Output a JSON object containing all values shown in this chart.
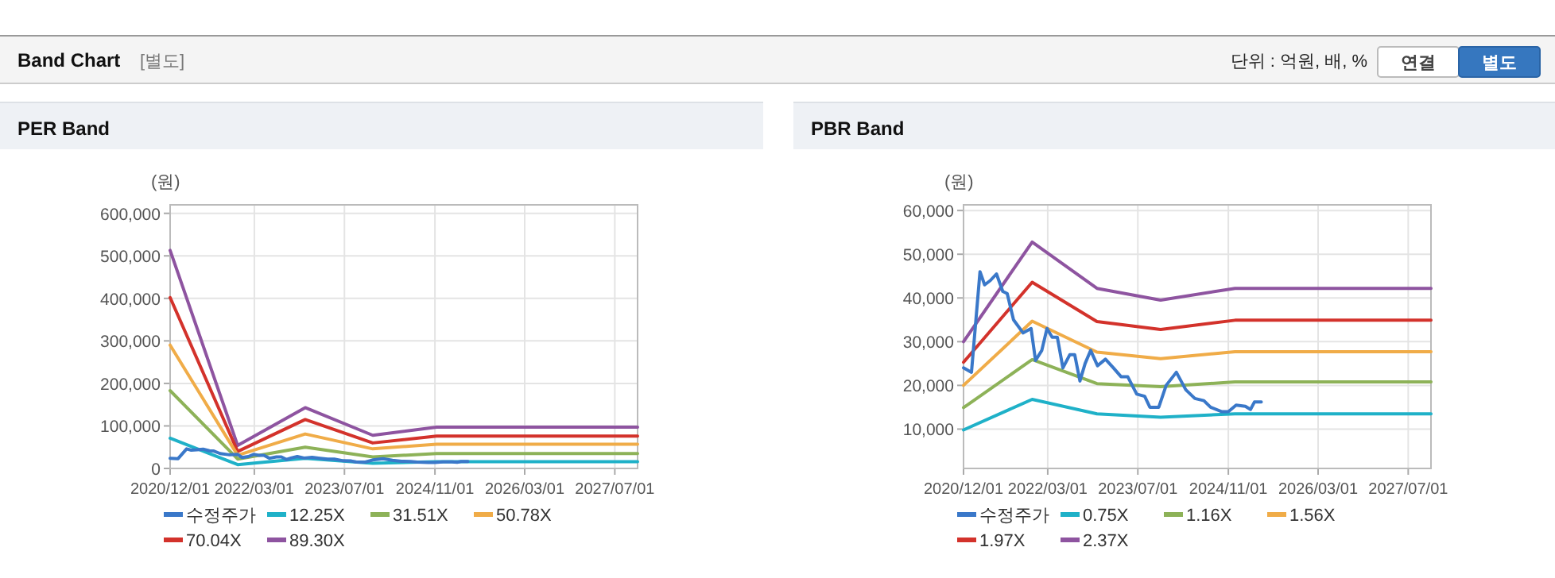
{
  "chart_data": [
    {
      "type": "other",
      "title": "Band Chart",
      "annotations": [
        "[별도]",
        "단위 : 억원, 배, %",
        "연결",
        "별도"
      ]
    },
    {
      "type": "line",
      "title": "PER Band",
      "ylabel": "(원)",
      "grid": true,
      "legend": "bottom",
      "xlim": [
        "2020-12-01",
        "2027-11-01"
      ],
      "xticks": [
        {
          "value": "2020-12-01",
          "label": "2020/12/01"
        },
        {
          "value": "2022-03-01",
          "label": "2022/03/01"
        },
        {
          "value": "2023-07-01",
          "label": "2023/07/01"
        },
        {
          "value": "2024-11-01",
          "label": "2024/11/01"
        },
        {
          "value": "2026-03-01",
          "label": "2026/03/01"
        },
        {
          "value": "2027-07-01",
          "label": "2027/07/01"
        }
      ],
      "ylim": [
        0,
        620000
      ],
      "yticks": [
        0,
        {
          "value": 100000,
          "label": "100,000"
        },
        {
          "value": 200000,
          "label": "200,000"
        },
        {
          "value": 300000,
          "label": "300,000"
        },
        {
          "value": 400000,
          "label": "400,000"
        },
        {
          "value": 500000,
          "label": "500,000"
        },
        {
          "value": 600000,
          "label": "600,000"
        }
      ],
      "x": [
        "2020-12-01",
        "2021-12-01",
        "2022-12-01",
        "2023-12-01",
        "2024-11-10",
        "2027-11-01"
      ],
      "series": [
        {
          "name": "수정주가",
          "color": "#3a78c9",
          "x": [
            "2020-12-01",
            "2021-01-13",
            "2021-02-28",
            "2021-03-25",
            "2021-04-25",
            "2021-05-28",
            "2021-07-01",
            "2021-07-25",
            "2021-08-28",
            "2021-10-19",
            "2021-12-01",
            "2021-12-25",
            "2022-01-28",
            "2022-02-25",
            "2022-03-25",
            "2022-04-22",
            "2022-05-22",
            "2022-06-28",
            "2022-07-25",
            "2022-08-22",
            "2022-09-19",
            "2022-10-19",
            "2022-11-25",
            "2023-01-07",
            "2023-02-19",
            "2023-04-01",
            "2023-05-07",
            "2023-06-25",
            "2023-08-07",
            "2023-09-04",
            "2023-10-22",
            "2023-12-01",
            "2024-01-25",
            "2024-03-16",
            "2024-05-04",
            "2024-06-22",
            "2024-07-28",
            "2024-09-25",
            "2024-11-01",
            "2024-12-13",
            "2025-02-01",
            "2025-03-01",
            "2025-03-22",
            "2025-04-28"
          ],
          "values": [
            24000,
            23000,
            46000,
            43000,
            44000,
            45500,
            41500,
            41000,
            35000,
            32000,
            33000,
            25700,
            28000,
            33000,
            31000,
            31000,
            24000,
            27000,
            27000,
            21000,
            25000,
            28000,
            24500,
            26000,
            24000,
            22000,
            22000,
            18000,
            17500,
            15000,
            15000,
            20000,
            23000,
            19000,
            17000,
            16500,
            15000,
            14000,
            14000,
            15500,
            15200,
            14500,
            16200,
            16200
          ]
        },
        {
          "name": "12.25X",
          "color": "#1fb1c8",
          "values": [
            71000,
            9000,
            24000,
            12000,
            16000,
            16000
          ]
        },
        {
          "name": "31.51X",
          "color": "#8db258",
          "values": [
            183000,
            22000,
            50000,
            27000,
            35000,
            35000
          ]
        },
        {
          "name": "50.78X",
          "color": "#f0ac48",
          "values": [
            290000,
            31000,
            81000,
            46000,
            57000,
            57000
          ]
        },
        {
          "name": "70.04X",
          "color": "#d3322b",
          "values": [
            402000,
            40000,
            115000,
            60000,
            76000,
            76000
          ]
        },
        {
          "name": "89.30X",
          "color": "#8e54a0",
          "values": [
            513000,
            54000,
            143000,
            78000,
            97000,
            97000
          ]
        }
      ]
    },
    {
      "type": "line",
      "title": "PBR Band",
      "ylabel": "(원)",
      "grid": true,
      "legend": "bottom",
      "xlim": [
        "2020-12-01",
        "2027-11-01"
      ],
      "xticks": [
        {
          "value": "2020-12-01",
          "label": "2020/12/01"
        },
        {
          "value": "2022-03-01",
          "label": "2022/03/01"
        },
        {
          "value": "2023-07-01",
          "label": "2023/07/01"
        },
        {
          "value": "2024-11-01",
          "label": "2024/11/01"
        },
        {
          "value": "2026-03-01",
          "label": "2026/03/01"
        },
        {
          "value": "2027-07-01",
          "label": "2027/07/01"
        }
      ],
      "ylim": [
        1000,
        61300
      ],
      "yticks": [
        {
          "value": 10000,
          "label": "10,000"
        },
        {
          "value": 20000,
          "label": "20,000"
        },
        {
          "value": 30000,
          "label": "30,000"
        },
        {
          "value": 40000,
          "label": "40,000"
        },
        {
          "value": 50000,
          "label": "50,000"
        },
        {
          "value": 60000,
          "label": "60,000"
        }
      ],
      "x": [
        "2020-12-01",
        "2021-12-07",
        "2022-11-22",
        "2023-11-01",
        "2024-12-07",
        "2027-11-01"
      ],
      "series": [
        {
          "name": "수정주가",
          "color": "#3a78c9",
          "x": [
            "2020-12-01",
            "2021-01-13",
            "2021-02-28",
            "2021-03-25",
            "2021-04-25",
            "2021-05-28",
            "2021-07-01",
            "2021-07-25",
            "2021-08-28",
            "2021-10-19",
            "2021-12-01",
            "2021-12-25",
            "2022-01-28",
            "2022-02-25",
            "2022-03-25",
            "2022-04-22",
            "2022-05-22",
            "2022-06-28",
            "2022-07-25",
            "2022-08-22",
            "2022-09-19",
            "2022-10-19",
            "2022-11-25",
            "2023-01-07",
            "2023-02-19",
            "2023-04-01",
            "2023-05-07",
            "2023-06-25",
            "2023-08-07",
            "2023-09-04",
            "2023-10-22",
            "2023-12-01",
            "2024-01-25",
            "2024-03-16",
            "2024-05-04",
            "2024-06-22",
            "2024-07-28",
            "2024-09-25",
            "2024-11-01",
            "2024-12-13",
            "2025-02-01",
            "2025-03-01",
            "2025-03-22",
            "2025-04-28"
          ],
          "values": [
            24000,
            23000,
            46000,
            43000,
            44000,
            45500,
            41500,
            41000,
            35000,
            32000,
            33000,
            25700,
            28000,
            33000,
            31000,
            31000,
            24000,
            27000,
            27000,
            21000,
            25000,
            28000,
            24500,
            26000,
            24000,
            22000,
            22000,
            18000,
            17500,
            15000,
            15000,
            20000,
            23000,
            19000,
            17000,
            16500,
            15000,
            14000,
            14000,
            15500,
            15200,
            14500,
            16200,
            16200
          ]
        },
        {
          "name": "0.75X",
          "color": "#1fb1c8",
          "values": [
            9800,
            16800,
            13500,
            12700,
            13500,
            13500
          ]
        },
        {
          "name": "1.16X",
          "color": "#8db258",
          "values": [
            14900,
            25900,
            20400,
            19700,
            20800,
            20800
          ]
        },
        {
          "name": "1.56X",
          "color": "#f0ac48",
          "values": [
            20000,
            34700,
            27600,
            26100,
            27700,
            27700
          ]
        },
        {
          "name": "1.97X",
          "color": "#d3322b",
          "values": [
            25300,
            43600,
            34600,
            32800,
            34900,
            34900
          ]
        },
        {
          "name": "2.37X",
          "color": "#8e54a0",
          "values": [
            30000,
            52800,
            42200,
            39500,
            42200,
            42200
          ]
        }
      ]
    }
  ]
}
